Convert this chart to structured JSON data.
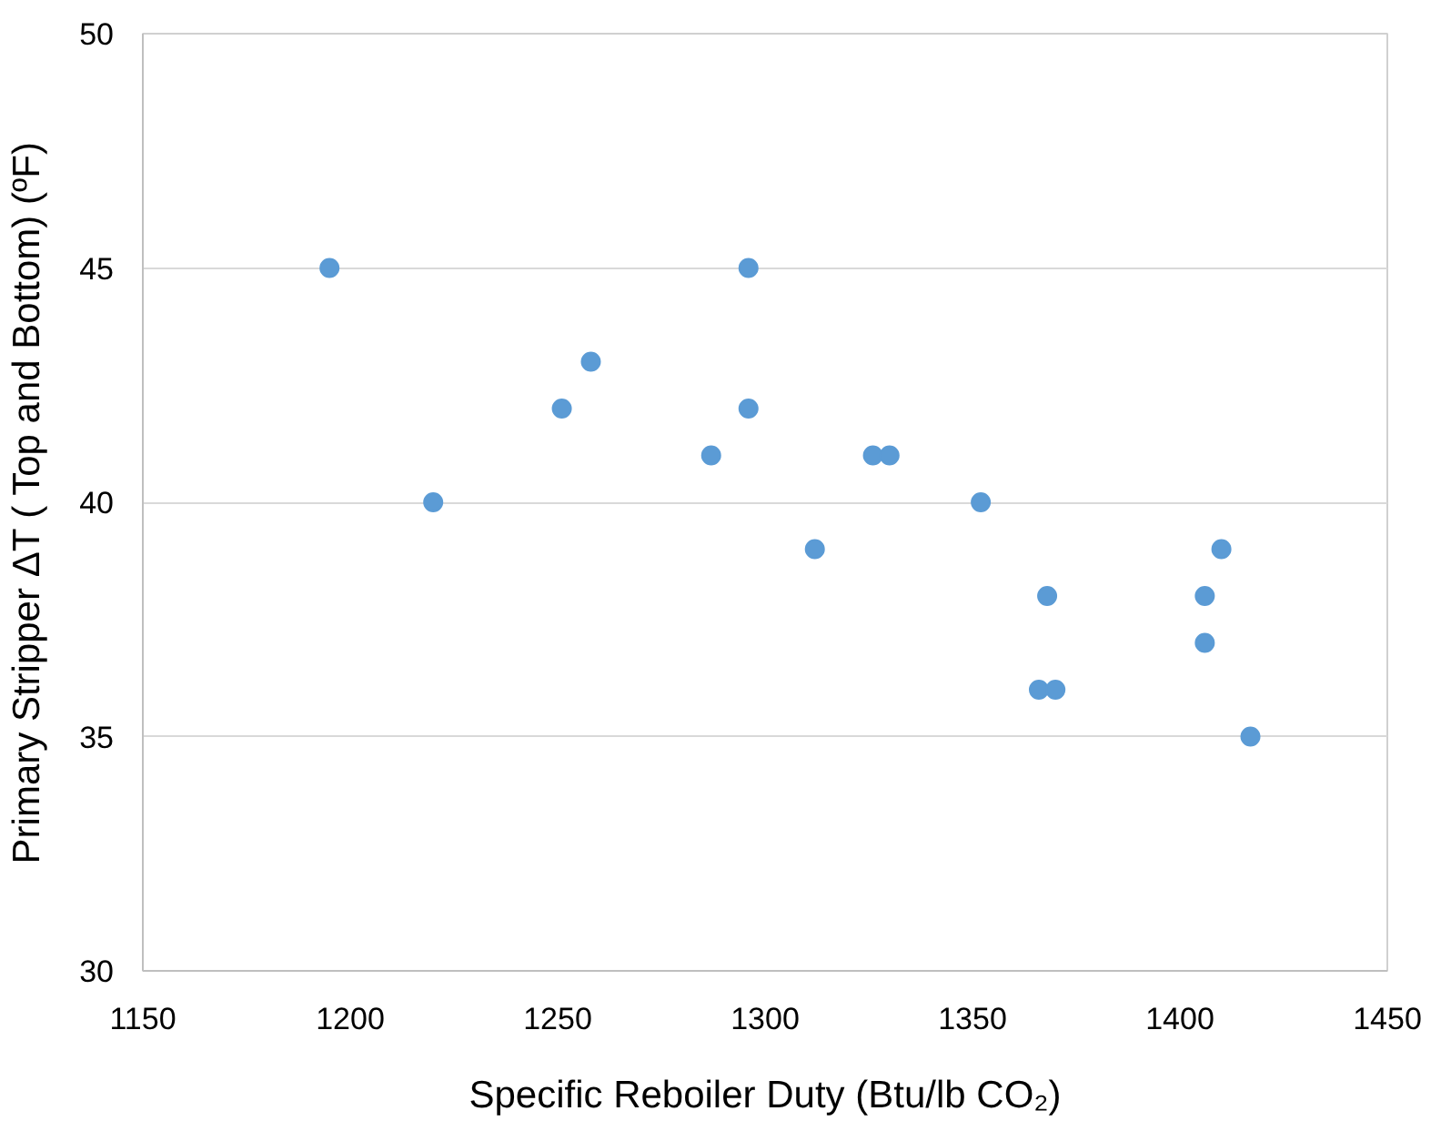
{
  "chart_data": {
    "type": "scatter",
    "xlabel": "Specific Reboiler Duty (Btu/lb CO₂)",
    "ylabel": "Primary Stripper ΔT ( Top and Bottom) (ºF)",
    "x": [
      1195,
      1220,
      1251,
      1258,
      1287,
      1296,
      1296,
      1312,
      1326,
      1330,
      1352,
      1366,
      1368,
      1370,
      1406,
      1406,
      1410,
      1417
    ],
    "series": [
      {
        "color": "#5b9bd5",
        "values": [
          45,
          40,
          42,
          43,
          41,
          45,
          42,
          39,
          41,
          41,
          40,
          36,
          38,
          36,
          38,
          37,
          39,
          35
        ]
      }
    ],
    "xlim": [
      1150,
      1450
    ],
    "xticks": [
      1150,
      1200,
      1250,
      1300,
      1350,
      1400,
      1450
    ],
    "ylim": [
      30,
      50
    ],
    "yticks": [
      30,
      35,
      40,
      45,
      50
    ],
    "grid": "y",
    "marker": "circle"
  }
}
